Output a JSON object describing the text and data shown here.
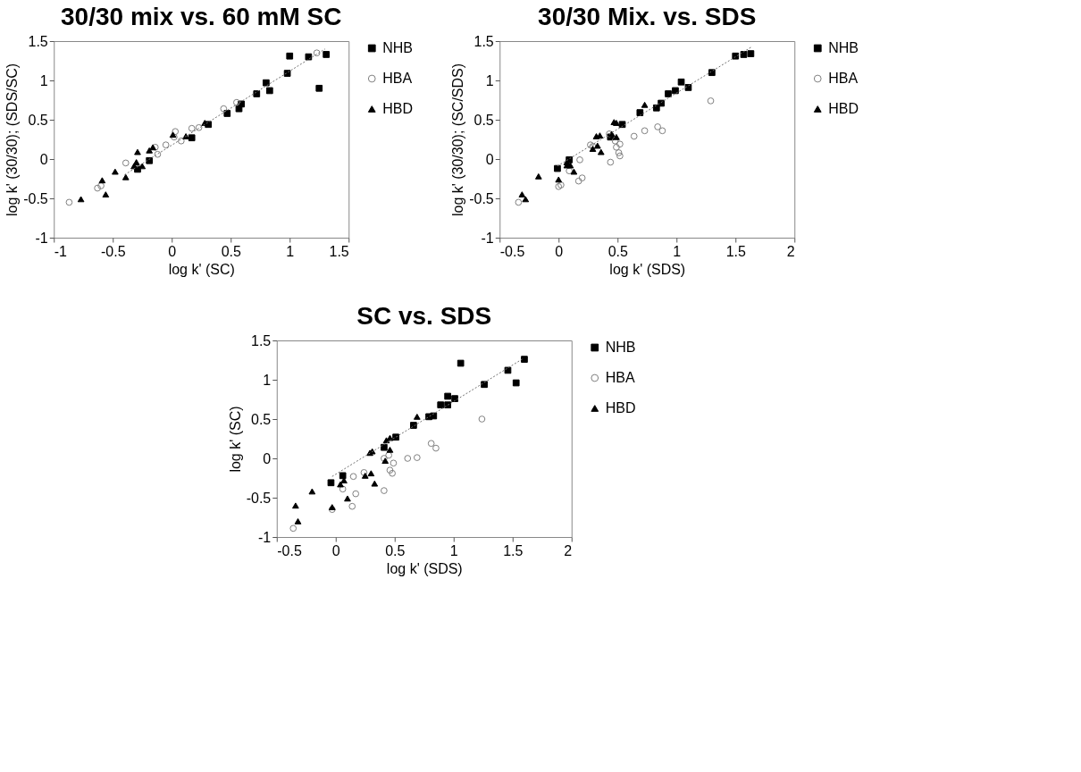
{
  "chart_data": [
    {
      "type": "scatter",
      "title": "30/30 mix vs. 60 mM SC",
      "xlabel": "log k' (SC)",
      "ylabel": "log k' (30/30); (SDS/SC)",
      "xlim": [
        -1,
        1.5
      ],
      "ylim": [
        -1,
        1.5
      ],
      "xticks": [
        -1,
        -0.5,
        0,
        0.5,
        1,
        1.5
      ],
      "yticks": [
        -1,
        -0.5,
        0,
        0.5,
        1,
        1.5
      ],
      "legend": "right",
      "series": [
        {
          "name": "NHB",
          "color": "#000000",
          "marker": "square",
          "x": [
            1.0,
            1.16,
            1.31,
            0.98,
            0.8,
            0.83,
            0.72,
            1.25,
            0.59,
            0.57,
            0.47,
            0.31,
            0.17,
            -0.19,
            -0.29
          ],
          "values": [
            1.31,
            1.3,
            1.33,
            1.09,
            0.97,
            0.87,
            0.83,
            0.9,
            0.7,
            0.64,
            0.58,
            0.44,
            0.27,
            -0.02,
            -0.13
          ]
        },
        {
          "name": "HBA",
          "color": "#808080",
          "marker": "circle",
          "x": [
            -0.87,
            -0.63,
            -0.6,
            -0.39,
            -0.14,
            -0.12,
            -0.05,
            0.03,
            0.02,
            0.08,
            0.17,
            0.23,
            0.44,
            0.55,
            1.23
          ],
          "values": [
            -0.55,
            -0.37,
            -0.34,
            -0.05,
            0.15,
            0.06,
            0.18,
            0.35,
            0.28,
            0.23,
            0.39,
            0.4,
            0.64,
            0.72,
            1.35
          ]
        },
        {
          "name": "HBD",
          "color": "#000000",
          "marker": "triangle",
          "x": [
            -0.77,
            -0.56,
            -0.59,
            -0.48,
            -0.39,
            -0.29,
            -0.3,
            -0.32,
            -0.25,
            -0.19,
            -0.16,
            0.01,
            0.12,
            0.28
          ],
          "values": [
            -0.51,
            -0.45,
            -0.27,
            -0.16,
            -0.23,
            0.09,
            -0.04,
            -0.09,
            -0.09,
            0.11,
            0.15,
            0.31,
            0.29,
            0.46
          ]
        },
        {
          "type": "line",
          "color": "#707070",
          "line_style": "dotted",
          "x": [
            -0.4,
            1.3
          ],
          "values": [
            -0.2,
            1.4
          ]
        }
      ]
    },
    {
      "type": "scatter",
      "title": "30/30 Mix. vs. SDS",
      "xlabel": "log k' (SDS)",
      "ylabel": "log k' (30/30); (SC/SDS)",
      "xlim": [
        -0.5,
        2
      ],
      "ylim": [
        -1,
        1.5
      ],
      "xticks": [
        -0.5,
        0,
        0.5,
        1,
        1.5,
        2
      ],
      "yticks": [
        -1,
        -0.5,
        0,
        0.5,
        1,
        1.5
      ],
      "legend": "right",
      "series": [
        {
          "name": "NHB",
          "color": "#000000",
          "marker": "square",
          "x": [
            1.5,
            1.57,
            1.63,
            1.3,
            1.04,
            1.1,
            0.93,
            0.99,
            0.87,
            0.83,
            0.69,
            0.54,
            0.44,
            0.09,
            -0.01
          ],
          "values": [
            1.31,
            1.33,
            1.34,
            1.1,
            0.98,
            0.91,
            0.83,
            0.87,
            0.71,
            0.65,
            0.59,
            0.44,
            0.28,
            -0.01,
            -0.12
          ]
        },
        {
          "name": "HBA",
          "color": "#808080",
          "marker": "circle",
          "x": [
            -0.34,
            0.0,
            0.02,
            0.09,
            0.18,
            0.17,
            0.2,
            0.27,
            0.29,
            0.44,
            0.43,
            0.48,
            0.52,
            0.49,
            0.51,
            0.52,
            0.64,
            0.73,
            0.84,
            0.88,
            1.29
          ],
          "values": [
            -0.55,
            -0.35,
            -0.33,
            -0.15,
            -0.01,
            -0.28,
            -0.24,
            0.18,
            0.16,
            -0.04,
            0.32,
            0.23,
            0.19,
            0.15,
            0.08,
            0.04,
            0.29,
            0.36,
            0.41,
            0.36,
            0.74
          ]
        },
        {
          "name": "HBD",
          "color": "#000000",
          "marker": "triangle",
          "x": [
            -0.31,
            -0.28,
            -0.17,
            0.0,
            0.07,
            0.1,
            0.13,
            0.07,
            0.29,
            0.33,
            0.36,
            0.32,
            0.35,
            0.45,
            0.49,
            0.47,
            0.49,
            0.73
          ],
          "values": [
            -0.45,
            -0.51,
            -0.22,
            -0.26,
            -0.08,
            -0.08,
            -0.16,
            -0.04,
            0.13,
            0.17,
            0.09,
            0.29,
            0.3,
            0.32,
            0.28,
            0.47,
            0.46,
            0.69
          ]
        },
        {
          "type": "line",
          "color": "#707070",
          "line_style": "dotted",
          "x": [
            -0.01,
            1.63
          ],
          "values": [
            -0.09,
            1.42
          ]
        }
      ]
    },
    {
      "type": "scatter",
      "title": "SC vs. SDS",
      "xlabel": "log k' (SDS)",
      "ylabel": "log k' (SC)",
      "xlim": [
        -0.5,
        2
      ],
      "ylim": [
        -1,
        1.5
      ],
      "xticks": [
        -0.5,
        0,
        0.5,
        1,
        1.5,
        2
      ],
      "yticks": [
        -1,
        -0.5,
        0,
        0.5,
        1,
        1.5
      ],
      "legend": "right",
      "series": [
        {
          "name": "NHB",
          "color": "#000000",
          "marker": "square",
          "x": [
            1.6,
            1.06,
            1.46,
            1.53,
            1.26,
            0.95,
            1.01,
            0.89,
            0.95,
            0.79,
            0.83,
            0.66,
            0.51,
            0.41,
            0.06,
            -0.04
          ],
          "values": [
            1.26,
            1.21,
            1.12,
            0.96,
            0.94,
            0.79,
            0.76,
            0.68,
            0.68,
            0.53,
            0.54,
            0.42,
            0.27,
            0.14,
            -0.22,
            -0.31
          ]
        },
        {
          "name": "HBA",
          "color": "#808080",
          "marker": "circle",
          "x": [
            -0.36,
            -0.03,
            0.06,
            0.14,
            0.17,
            0.15,
            0.24,
            0.41,
            0.41,
            0.45,
            0.49,
            0.46,
            0.48,
            0.61,
            0.69,
            0.81,
            0.85,
            1.24
          ],
          "values": [
            -0.89,
            -0.65,
            -0.39,
            -0.61,
            -0.45,
            -0.23,
            -0.18,
            -0.41,
            0.0,
            0.04,
            -0.06,
            -0.15,
            -0.19,
            0.0,
            0.01,
            0.19,
            0.13,
            0.5
          ]
        },
        {
          "name": "HBD",
          "color": "#000000",
          "marker": "triangle",
          "x": [
            -0.34,
            -0.32,
            -0.2,
            -0.03,
            0.04,
            0.07,
            0.1,
            0.25,
            0.3,
            0.33,
            0.29,
            0.31,
            0.42,
            0.46,
            0.43,
            0.46,
            0.69
          ],
          "values": [
            -0.6,
            -0.8,
            -0.42,
            -0.62,
            -0.33,
            -0.28,
            -0.51,
            -0.22,
            -0.19,
            -0.32,
            0.07,
            0.09,
            -0.03,
            0.11,
            0.23,
            0.26,
            0.53
          ]
        },
        {
          "type": "line",
          "color": "#707070",
          "line_style": "dotted",
          "x": [
            -0.03,
            1.59
          ],
          "values": [
            -0.23,
            1.27
          ]
        }
      ]
    }
  ]
}
